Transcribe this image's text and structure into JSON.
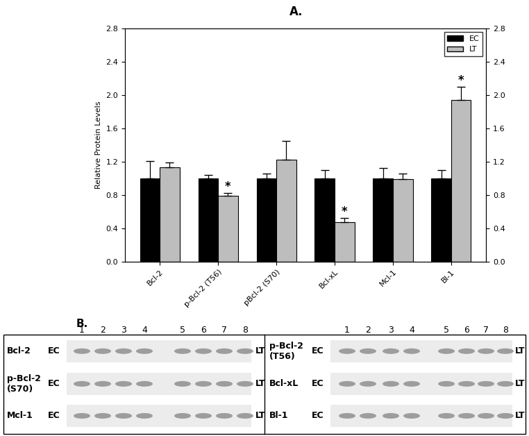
{
  "chart_data": {
    "type": "bar",
    "title": "A.",
    "y_label": "Relative Protein Levels",
    "categories": [
      "Bcl-2",
      "p-Bcl-2 (T56)",
      "pBcl-2 (S70)",
      "Bcl-xL",
      "Mcl-1",
      "Bl-1"
    ],
    "series": [
      {
        "name": "EC",
        "color": "#000000",
        "values": [
          1.0,
          1.0,
          1.0,
          1.0,
          1.0,
          1.0
        ],
        "errors": [
          0.21,
          0.04,
          0.06,
          0.1,
          0.12,
          0.1
        ]
      },
      {
        "name": "LT",
        "color": "#bdbdbd",
        "values": [
          1.13,
          0.79,
          1.22,
          0.47,
          0.99,
          1.94
        ],
        "errors": [
          0.06,
          0.03,
          0.23,
          0.05,
          0.07,
          0.16
        ]
      }
    ],
    "annotations": [
      {
        "series": "LT",
        "category": "p-Bcl-2 (T56)",
        "text": "*"
      },
      {
        "series": "LT",
        "category": "Bcl-xL",
        "text": "*"
      },
      {
        "series": "LT",
        "category": "Bl-1",
        "text": "*"
      }
    ],
    "ylim": [
      0.0,
      2.8
    ],
    "yticks": [
      0.0,
      0.4,
      0.8,
      1.2,
      1.6,
      2.0,
      2.4,
      2.8
    ],
    "y2lim": [
      0.0,
      2.8
    ],
    "y2ticks": [
      0.0,
      0.4,
      0.8,
      1.2,
      1.6,
      2.0,
      2.4,
      2.8
    ],
    "legend": "upper right",
    "grid": false
  },
  "panel_b": {
    "title": "B.",
    "lanes": [
      "1",
      "2",
      "3",
      "4",
      "5",
      "6",
      "7",
      "8"
    ],
    "left_column": [
      {
        "protein": "Bcl-2",
        "left": "EC",
        "right": "LT"
      },
      {
        "protein": "p-Bcl-2\n(S70)",
        "left": "EC",
        "right": "LT"
      },
      {
        "protein": "Mcl-1",
        "left": "EC",
        "right": "LT"
      }
    ],
    "right_column": [
      {
        "protein": "p-Bcl-2\n(T56)",
        "left": "EC",
        "right": "LT"
      },
      {
        "protein": "Bcl-xL",
        "left": "EC",
        "right": "LT"
      },
      {
        "protein": "Bl-1",
        "left": "EC",
        "right": "LT"
      }
    ]
  }
}
